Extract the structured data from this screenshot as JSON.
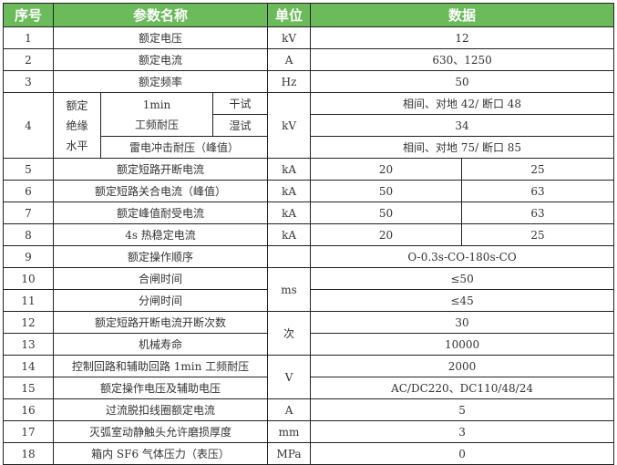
{
  "header": {
    "no": "序号",
    "name": "参数名称",
    "unit": "单位",
    "data": "数据"
  },
  "header_color": "#6bbb5b",
  "rows": [
    {
      "no": "1",
      "name": "额定电压",
      "unit": "kV",
      "data": [
        "12"
      ]
    },
    {
      "no": "2",
      "name": "额定电流",
      "unit": "A",
      "data": [
        "630、1250"
      ]
    },
    {
      "no": "3",
      "name": "额定频率",
      "unit": "Hz",
      "data": [
        "50"
      ]
    },
    {
      "no": "4",
      "group": "额定绝缘水平",
      "sub": "1min工频耐压",
      "sub_lines": [
        "1min",
        "工频耐压"
      ],
      "dry": "干试",
      "wet": "湿试",
      "impulse": "雷电冲击耐压（峰值）",
      "unit": "kV",
      "data": [
        "相间、对地 42/ 断口 48",
        "34",
        "相间、对地 75/ 断口 85"
      ],
      "group_lines": [
        "额定",
        "绝缘",
        "水平"
      ]
    },
    {
      "no": "5",
      "name": "额定短路开断电流",
      "unit": "kA",
      "data": [
        "20",
        "25"
      ]
    },
    {
      "no": "6",
      "name": "额定短路关合电流（峰值）",
      "unit": "kA",
      "data": [
        "50",
        "63"
      ]
    },
    {
      "no": "7",
      "name": "额定峰值耐受电流",
      "unit": "kA",
      "data": [
        "50",
        "63"
      ]
    },
    {
      "no": "8",
      "name": "4s 热稳定电流",
      "unit": "kA",
      "data": [
        "20",
        "25"
      ]
    },
    {
      "no": "9",
      "name": "额定操作顺序",
      "unit": "",
      "data": [
        "O-0.3s-CO-180s-CO"
      ]
    },
    {
      "no": "10",
      "name": "合闸时间",
      "unit": "ms",
      "span": 2,
      "data": [
        "≤50"
      ]
    },
    {
      "no": "11",
      "name": "分闸时间",
      "data": [
        "≤45"
      ]
    },
    {
      "no": "12",
      "name": "额定短路开断电流开断次数",
      "unit": "次",
      "span": 2,
      "data": [
        "30"
      ]
    },
    {
      "no": "13",
      "name": "机械寿命",
      "data": [
        "10000"
      ]
    },
    {
      "no": "14",
      "name": "控制回路和辅助回路 1min 工频耐压",
      "unit": "V",
      "span": 2,
      "data": [
        "2000"
      ]
    },
    {
      "no": "15",
      "name": "额定操作电压及辅助电压",
      "data": [
        "AC/DC220、DC110/48/24"
      ]
    },
    {
      "no": "16",
      "name": "过流脱扣线圈额定电流",
      "unit": "A",
      "data": [
        "5"
      ]
    },
    {
      "no": "17",
      "name": "灭弧室动静触头允许磨损厚度",
      "unit": "mm",
      "data": [
        "3"
      ]
    },
    {
      "no": "18",
      "name": "箱内 SF6 气体压力（表压）",
      "unit": "MPa",
      "data": [
        "0"
      ]
    }
  ]
}
